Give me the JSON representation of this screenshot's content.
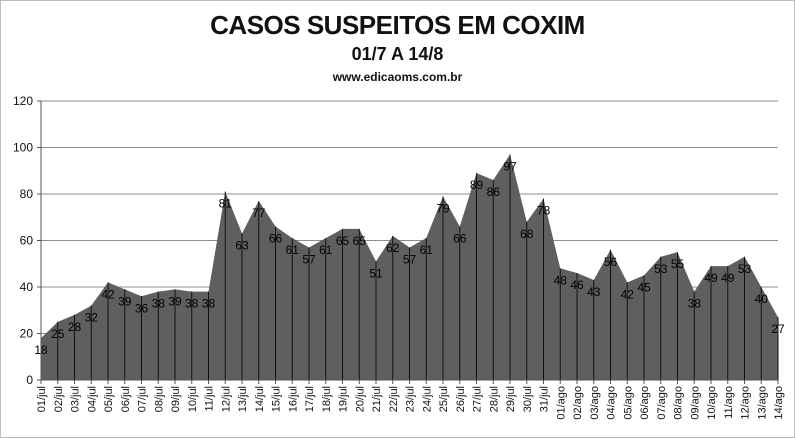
{
  "chart_data": {
    "type": "area",
    "title": "CASOS SUSPEITOS EM COXIM",
    "subtitle": "01/7 A 14/8",
    "source": "www.edicaoms.com.br",
    "ylim": [
      0,
      120
    ],
    "yticks": [
      0,
      20,
      40,
      60,
      80,
      100,
      120
    ],
    "grid": true,
    "fill_color": "#5f5f5f",
    "categories": [
      "01/jul",
      "02/jul",
      "03/jul",
      "04/jul",
      "05/jul",
      "06/jul",
      "07/jul",
      "08/jul",
      "09/jul",
      "10/jul",
      "11/jul",
      "12/jul",
      "13/jul",
      "14/jul",
      "15/jul",
      "16/jul",
      "17/jul",
      "18/jul",
      "19/jul",
      "20/jul",
      "21/jul",
      "22/jul",
      "23/jul",
      "24/jul",
      "25/jul",
      "26/jul",
      "27/jul",
      "28/jul",
      "29/jul",
      "30/jul",
      "31/jul",
      "01/ago",
      "02/ago",
      "03/ago",
      "04/ago",
      "05/ago",
      "06/ago",
      "07/ago",
      "08/ago",
      "09/ago",
      "10/ago",
      "11/ago",
      "12/ago",
      "13/ago",
      "14/ago"
    ],
    "values": [
      18,
      25,
      28,
      32,
      42,
      39,
      36,
      38,
      39,
      38,
      38,
      81,
      63,
      77,
      66,
      61,
      57,
      61,
      65,
      65,
      51,
      62,
      57,
      61,
      79,
      66,
      89,
      86,
      97,
      68,
      78,
      48,
      46,
      43,
      56,
      42,
      45,
      53,
      55,
      38,
      49,
      49,
      53,
      40,
      27
    ]
  }
}
